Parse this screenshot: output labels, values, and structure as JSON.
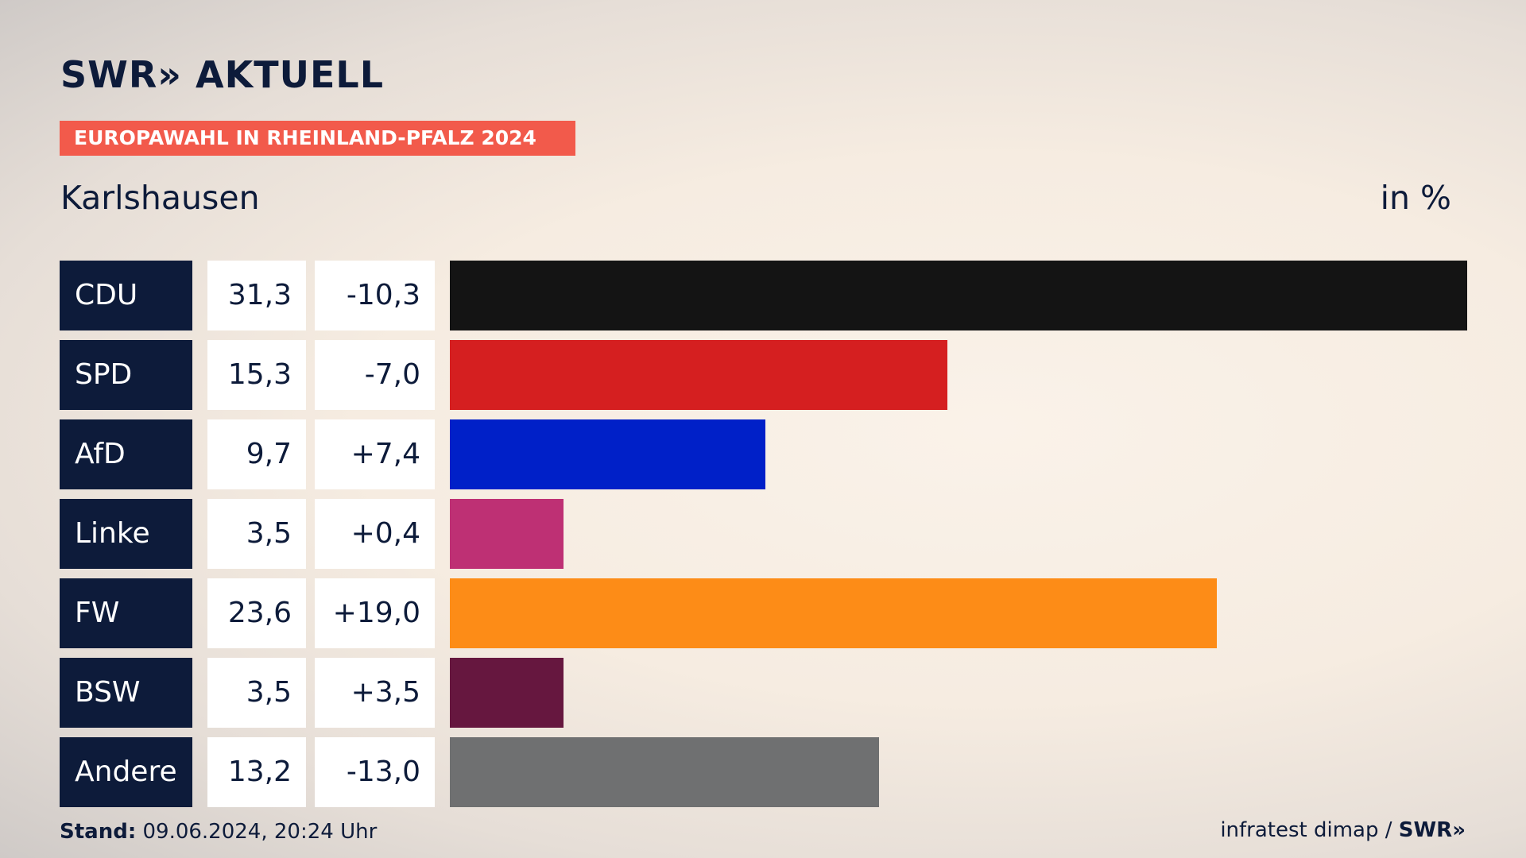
{
  "brand": {
    "logo_text": "SWR» AKTUELL"
  },
  "header": {
    "banner": "EUROPAWAHL IN RHEINLAND-PFALZ 2024",
    "place": "Karlshausen",
    "unit": "in %"
  },
  "footer": {
    "stand_label": "Stand:",
    "stand_value": "09.06.2024, 20:24 Uhr",
    "source_text": "infratest dimap / ",
    "source_logo": "SWR»"
  },
  "colors": {
    "navy": "#0d1b3a",
    "banner": "#f25a4b"
  },
  "chart_data": {
    "type": "bar",
    "orientation": "horizontal",
    "categories": [
      "CDU",
      "SPD",
      "AfD",
      "Linke",
      "FW",
      "BSW",
      "Andere"
    ],
    "values": [
      31.3,
      15.3,
      9.7,
      3.5,
      23.6,
      3.5,
      13.2
    ],
    "value_labels": [
      "31,3",
      "15,3",
      "9,7",
      "3,5",
      "23,6",
      "3,5",
      "13,2"
    ],
    "diff_labels": [
      "-10,3",
      "-7,0",
      "+7,4",
      "+0,4",
      "+19,0",
      "+3,5",
      "-13,0"
    ],
    "bar_colors": [
      "#141414",
      "#d51f20",
      "#0020c8",
      "#be3074",
      "#fd8c17",
      "#66173f",
      "#6f7071"
    ],
    "xlim": [
      0,
      31.3
    ],
    "grid": false,
    "legend": "none"
  }
}
